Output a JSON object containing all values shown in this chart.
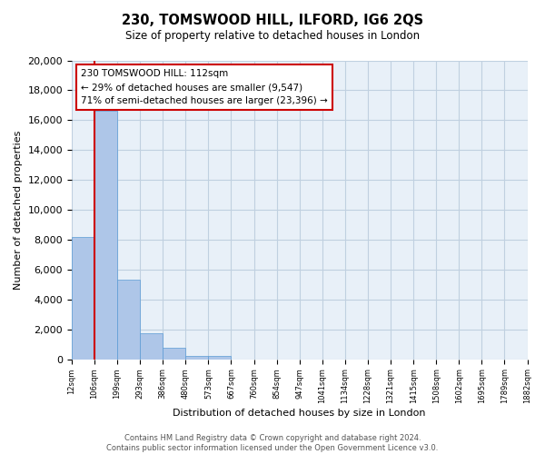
{
  "title": "230, TOMSWOOD HILL, ILFORD, IG6 2QS",
  "subtitle": "Size of property relative to detached houses in London",
  "xlabel": "Distribution of detached houses by size in London",
  "ylabel": "Number of detached properties",
  "bar_values": [
    8200,
    16600,
    5300,
    1750,
    750,
    230,
    230,
    0,
    0,
    0,
    0,
    0,
    0,
    0,
    0,
    0,
    0,
    0,
    0,
    0
  ],
  "bin_labels": [
    "12sqm",
    "106sqm",
    "199sqm",
    "293sqm",
    "386sqm",
    "480sqm",
    "573sqm",
    "667sqm",
    "760sqm",
    "854sqm",
    "947sqm",
    "1041sqm",
    "1134sqm",
    "1228sqm",
    "1321sqm",
    "1415sqm",
    "1508sqm",
    "1602sqm",
    "1695sqm",
    "1789sqm",
    "1882sqm"
  ],
  "bar_color": "#aec6e8",
  "bar_edge_color": "#5b9bd5",
  "vline_color": "#cc0000",
  "ylim": [
    0,
    20000
  ],
  "yticks": [
    0,
    2000,
    4000,
    6000,
    8000,
    10000,
    12000,
    14000,
    16000,
    18000,
    20000
  ],
  "annotation_title": "230 TOMSWOOD HILL: 112sqm",
  "annotation_line1": "← 29% of detached houses are smaller (9,547)",
  "annotation_line2": "71% of semi-detached houses are larger (23,396) →",
  "annotation_box_color": "#ffffff",
  "annotation_box_edge": "#cc0000",
  "footer_line1": "Contains HM Land Registry data © Crown copyright and database right 2024.",
  "footer_line2": "Contains public sector information licensed under the Open Government Licence v3.0.",
  "background_color": "#ffffff",
  "plot_bg_color": "#e8f0f8",
  "grid_color": "#c0d0e0"
}
